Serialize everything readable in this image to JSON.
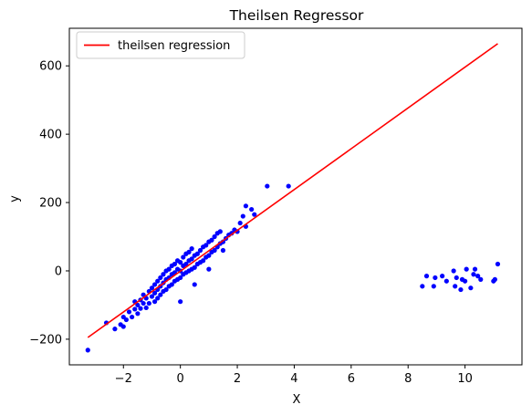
{
  "chart_data": {
    "type": "scatter",
    "title": "Theilsen Regressor",
    "xlabel": "X",
    "ylabel": "y",
    "xlim": [
      -3.9,
      12.0
    ],
    "ylim": [
      -275,
      710
    ],
    "xticks": [
      -2,
      0,
      2,
      4,
      6,
      8,
      10
    ],
    "yticks": [
      -200,
      0,
      200,
      400,
      600
    ],
    "xtick_labels": [
      "−2",
      "0",
      "2",
      "4",
      "6",
      "8",
      "10"
    ],
    "ytick_labels": [
      "−200",
      "0",
      "200",
      "400",
      "600"
    ],
    "grid": false,
    "legend": {
      "placement": "upper-left",
      "entries": [
        "theilsen regression"
      ]
    },
    "colors": {
      "points": "#0000ff",
      "line": "#ff0000"
    },
    "series": [
      {
        "kind": "scatter",
        "points": [
          [
            -3.25,
            -232
          ],
          [
            -2.6,
            -152
          ],
          [
            -2.3,
            -170
          ],
          [
            -2.1,
            -157
          ],
          [
            -2.0,
            -163
          ],
          [
            -2.0,
            -135
          ],
          [
            -1.9,
            -143
          ],
          [
            -1.8,
            -120
          ],
          [
            -1.7,
            -135
          ],
          [
            -1.6,
            -112
          ],
          [
            -1.6,
            -90
          ],
          [
            -1.5,
            -125
          ],
          [
            -1.5,
            -100
          ],
          [
            -1.4,
            -85
          ],
          [
            -1.4,
            -110
          ],
          [
            -1.3,
            -95
          ],
          [
            -1.3,
            -70
          ],
          [
            -1.2,
            -108
          ],
          [
            -1.2,
            -80
          ],
          [
            -1.1,
            -60
          ],
          [
            -1.1,
            -95
          ],
          [
            -1.0,
            -75
          ],
          [
            -1.0,
            -50
          ],
          [
            -0.9,
            -90
          ],
          [
            -0.9,
            -65
          ],
          [
            -0.9,
            -40
          ],
          [
            -0.8,
            -80
          ],
          [
            -0.8,
            -55
          ],
          [
            -0.8,
            -30
          ],
          [
            -0.7,
            -70
          ],
          [
            -0.7,
            -45
          ],
          [
            -0.7,
            -20
          ],
          [
            -0.6,
            -60
          ],
          [
            -0.6,
            -35
          ],
          [
            -0.6,
            -10
          ],
          [
            -0.5,
            -55
          ],
          [
            -0.5,
            -25
          ],
          [
            -0.5,
            0
          ],
          [
            -0.4,
            -45
          ],
          [
            -0.4,
            -20
          ],
          [
            -0.4,
            5
          ],
          [
            -0.3,
            -40
          ],
          [
            -0.3,
            -10
          ],
          [
            -0.3,
            15
          ],
          [
            -0.2,
            -30
          ],
          [
            -0.2,
            -5
          ],
          [
            -0.2,
            20
          ],
          [
            -0.1,
            -25
          ],
          [
            -0.1,
            5
          ],
          [
            -0.1,
            30
          ],
          [
            0.0,
            -20
          ],
          [
            0.0,
            0
          ],
          [
            0.0,
            25
          ],
          [
            0.0,
            -90
          ],
          [
            0.1,
            -10
          ],
          [
            0.1,
            15
          ],
          [
            0.1,
            40
          ],
          [
            0.2,
            -5
          ],
          [
            0.2,
            20
          ],
          [
            0.2,
            50
          ],
          [
            0.3,
            0
          ],
          [
            0.3,
            30
          ],
          [
            0.3,
            55
          ],
          [
            0.4,
            5
          ],
          [
            0.4,
            35
          ],
          [
            0.4,
            65
          ],
          [
            0.5,
            10
          ],
          [
            0.5,
            45
          ],
          [
            0.5,
            -40
          ],
          [
            0.6,
            20
          ],
          [
            0.6,
            50
          ],
          [
            0.7,
            25
          ],
          [
            0.7,
            60
          ],
          [
            0.8,
            30
          ],
          [
            0.8,
            70
          ],
          [
            0.9,
            40
          ],
          [
            0.9,
            75
          ],
          [
            1.0,
            45
          ],
          [
            1.0,
            85
          ],
          [
            1.0,
            5
          ],
          [
            1.1,
            55
          ],
          [
            1.1,
            90
          ],
          [
            1.2,
            60
          ],
          [
            1.2,
            100
          ],
          [
            1.3,
            70
          ],
          [
            1.3,
            110
          ],
          [
            1.4,
            80
          ],
          [
            1.4,
            115
          ],
          [
            1.5,
            85
          ],
          [
            1.5,
            60
          ],
          [
            1.6,
            95
          ],
          [
            1.7,
            105
          ],
          [
            1.8,
            110
          ],
          [
            1.9,
            120
          ],
          [
            2.0,
            115
          ],
          [
            2.1,
            140
          ],
          [
            2.2,
            160
          ],
          [
            2.3,
            130
          ],
          [
            2.3,
            190
          ],
          [
            2.5,
            180
          ],
          [
            2.6,
            165
          ],
          [
            3.05,
            248
          ],
          [
            3.8,
            248
          ],
          [
            8.5,
            -45
          ],
          [
            8.65,
            -15
          ],
          [
            8.9,
            -45
          ],
          [
            8.95,
            -20
          ],
          [
            9.2,
            -15
          ],
          [
            9.35,
            -30
          ],
          [
            9.6,
            0
          ],
          [
            9.65,
            -45
          ],
          [
            9.7,
            -20
          ],
          [
            9.85,
            -55
          ],
          [
            9.9,
            -25
          ],
          [
            10.0,
            -30
          ],
          [
            10.05,
            5
          ],
          [
            10.2,
            -50
          ],
          [
            10.3,
            -10
          ],
          [
            10.35,
            5
          ],
          [
            10.45,
            -15
          ],
          [
            10.55,
            -25
          ],
          [
            11.0,
            -30
          ],
          [
            11.05,
            -25
          ],
          [
            11.15,
            20
          ]
        ]
      },
      {
        "kind": "line",
        "name": "theilsen regression",
        "x": [
          -3.25,
          11.15
        ],
        "y": [
          -195,
          665
        ]
      }
    ]
  }
}
